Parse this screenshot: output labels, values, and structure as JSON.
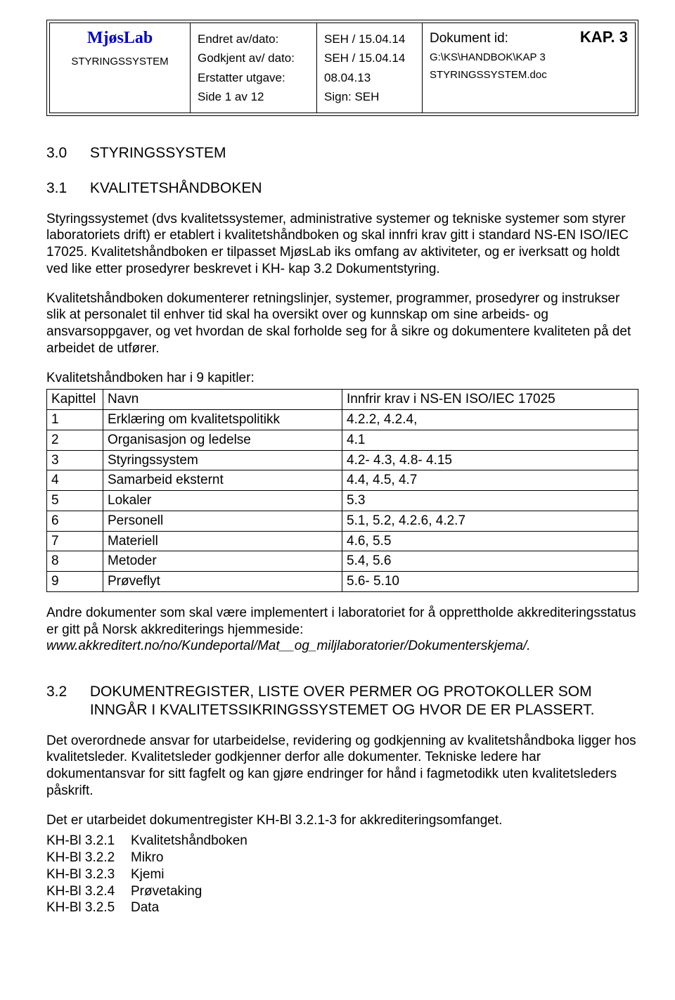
{
  "header": {
    "brand": "MjøsLab",
    "system_label": "STYRINGSSYSTEM",
    "rows_b": [
      "Endret av/dato:",
      "Godkjent av/ dato:",
      "Erstatter utgave:",
      "Side 1 av 12"
    ],
    "rows_c": [
      "SEH / 15.04.14",
      "SEH / 15.04.14",
      "08.04.13",
      "Sign: SEH"
    ],
    "doc_id_label": "Dokument id:",
    "kap": "KAP. 3",
    "doc_path_1": "G:\\KS\\HANDBOK\\KAP 3",
    "doc_path_2": "STYRINGSSYSTEM.doc"
  },
  "s30": {
    "num": "3.0",
    "title": "STYRINGSSYSTEM"
  },
  "s31": {
    "num": "3.1",
    "title": "KVALITETSHÅNDBOKEN"
  },
  "para1": "Styringssystemet (dvs kvalitetssystemer, administrative systemer og tekniske systemer som styrer laboratoriets drift) er etablert i kvalitetshåndboken og skal innfri krav gitt i standard NS-EN ISO/IEC 17025. Kvalitetshåndboken er tilpasset MjøsLab iks omfang av aktiviteter, og er iverksatt og holdt ved like etter prosedyrer beskrevet i KH- kap 3.2 Dokumentstyring.",
  "para2": "Kvalitetshåndboken dokumenterer retningslinjer, systemer, programmer, prosedyrer og instrukser slik at personalet til enhver tid skal ha oversikt over og kunnskap om sine arbeids- og ansvarsoppgaver, og vet hvordan de skal forholde seg for å sikre og dokumentere kvaliteten på det arbeidet de utfører.",
  "table_caption": "Kvalitetshåndboken har i 9 kapitler:",
  "chapters": {
    "headers": [
      "Kapittel",
      "Navn",
      "Innfrir krav i NS-EN ISO/IEC 17025"
    ],
    "rows": [
      [
        "1",
        "Erklæring om kvalitetspolitikk",
        "4.2.2, 4.2.4,"
      ],
      [
        "2",
        "Organisasjon og ledelse",
        "4.1"
      ],
      [
        "3",
        "Styringssystem",
        "4.2- 4.3, 4.8- 4.15"
      ],
      [
        "4",
        "Samarbeid eksternt",
        "4.4, 4.5, 4.7"
      ],
      [
        "5",
        "Lokaler",
        "5.3"
      ],
      [
        "6",
        "Personell",
        "5.1, 5.2, 4.2.6, 4.2.7"
      ],
      [
        "7",
        "Materiell",
        "4.6, 5.5"
      ],
      [
        "8",
        "Metoder",
        "5.4, 5.6"
      ],
      [
        "9",
        "Prøveflyt",
        "5.6- 5.10"
      ]
    ]
  },
  "para3a": "Andre dokumenter som skal være implementert i laboratoriet for å opprettholde akkrediteringsstatus er gitt på Norsk akkrediterings hjemmeside:",
  "para3b": "www.akkreditert.no/no/Kundeportal/Mat__og_miljlaboratorier/Dokumenterskjema/.",
  "s32": {
    "num": "3.2",
    "title": "DOKUMENTREGISTER, LISTE OVER PERMER OG PROTOKOLLER SOM INNGÅR I KVALITETSSIKRINGSSYSTEMET OG HVOR DE ER PLASSERT."
  },
  "para4": "Det overordnede ansvar for utarbeidelse, revidering og godkjenning av kvalitetshåndboka ligger hos kvalitetsleder. Kvalitetsleder godkjenner derfor alle dokumenter. Tekniske ledere har dokumentansvar for sitt fagfelt og kan gjøre endringer for hånd i fagmetodikk uten kvalitetsleders påskrift.",
  "para5": "Det er utarbeidet dokumentregister KH-Bl 3.2.1-3 for akkrediteringsomfanget.",
  "bl_list": [
    [
      "KH-Bl 3.2.1",
      "Kvalitetshåndboken"
    ],
    [
      "KH-Bl 3.2.2",
      "Mikro"
    ],
    [
      "KH-Bl 3.2.3",
      "Kjemi"
    ],
    [
      "KH-Bl 3.2.4",
      "Prøvetaking"
    ],
    [
      "KH-Bl 3.2.5",
      "Data"
    ]
  ],
  "colors": {
    "brand": "#0000cc",
    "text": "#000000",
    "background": "#ffffff",
    "border": "#000000"
  }
}
